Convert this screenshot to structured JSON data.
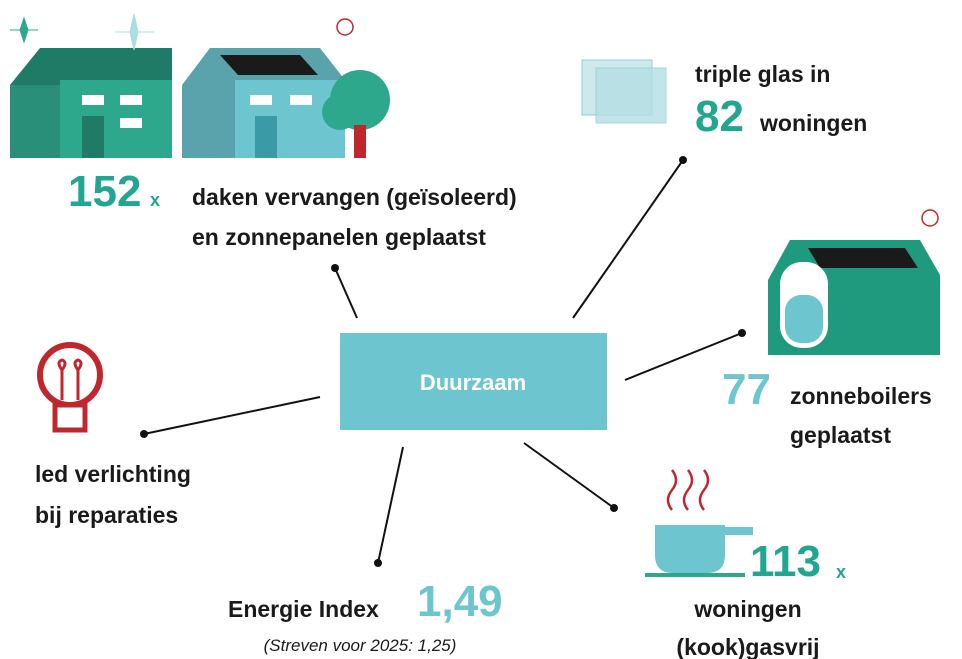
{
  "center": {
    "label": "Duurzaam"
  },
  "items": [
    {
      "number": "152",
      "suffix": "x",
      "text": [
        "daken vervangen (geïsoleerd)",
        "en zonnepanelen geplaatst"
      ]
    },
    {
      "prefix": "triple glas in",
      "number": "82",
      "text": [
        "woningen"
      ]
    },
    {
      "number": "77",
      "text": [
        "zonneboilers",
        "geplaatst"
      ]
    },
    {
      "number": "113",
      "suffix": "x",
      "text": [
        "woningen",
        "(kook)gasvrij"
      ]
    },
    {
      "label": "Energie Index",
      "number": "1,49",
      "note": "(Streven voor 2025: 1,25)"
    },
    {
      "text": [
        "led verlichting",
        "bij reparaties"
      ]
    }
  ]
}
